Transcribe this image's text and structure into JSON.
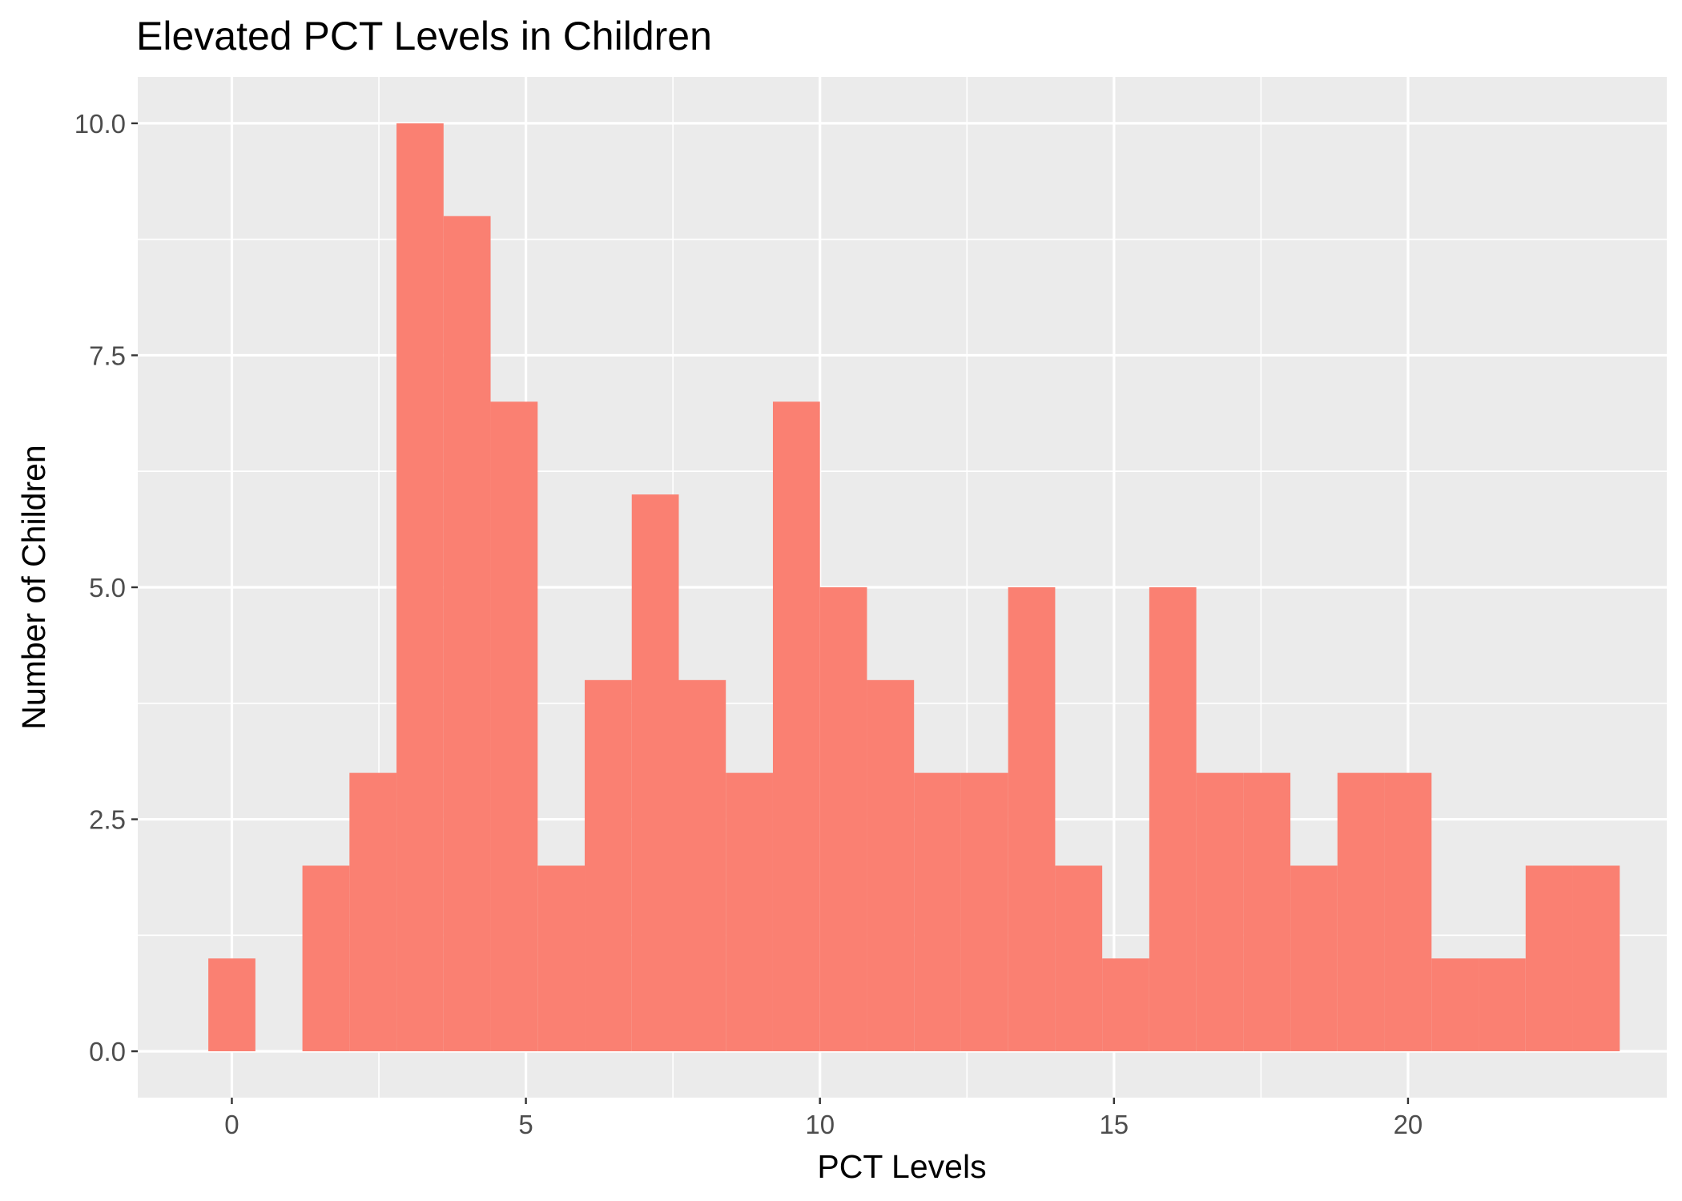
{
  "chart_data": {
    "type": "bar",
    "title": "Elevated PCT Levels in Children",
    "xlabel": "PCT Levels",
    "ylabel": "Number of Children",
    "bin_width": 0.8,
    "bins": [
      {
        "x": 0.0,
        "count": 1
      },
      {
        "x": 0.8,
        "count": 0
      },
      {
        "x": 1.6,
        "count": 2
      },
      {
        "x": 2.4,
        "count": 3
      },
      {
        "x": 3.2,
        "count": 10
      },
      {
        "x": 4.0,
        "count": 9
      },
      {
        "x": 4.8,
        "count": 7
      },
      {
        "x": 5.6,
        "count": 2
      },
      {
        "x": 6.4,
        "count": 4
      },
      {
        "x": 7.2,
        "count": 6
      },
      {
        "x": 8.0,
        "count": 4
      },
      {
        "x": 8.8,
        "count": 3
      },
      {
        "x": 9.6,
        "count": 7
      },
      {
        "x": 10.4,
        "count": 5
      },
      {
        "x": 11.2,
        "count": 4
      },
      {
        "x": 12.0,
        "count": 3
      },
      {
        "x": 12.8,
        "count": 3
      },
      {
        "x": 13.6,
        "count": 5
      },
      {
        "x": 14.4,
        "count": 2
      },
      {
        "x": 15.2,
        "count": 1
      },
      {
        "x": 16.0,
        "count": 5
      },
      {
        "x": 16.8,
        "count": 3
      },
      {
        "x": 17.6,
        "count": 3
      },
      {
        "x": 18.4,
        "count": 2
      },
      {
        "x": 19.2,
        "count": 3
      },
      {
        "x": 20.0,
        "count": 3
      },
      {
        "x": 20.8,
        "count": 1
      },
      {
        "x": 21.6,
        "count": 1
      },
      {
        "x": 22.4,
        "count": 2
      },
      {
        "x": 23.2,
        "count": 2
      }
    ],
    "xlim": [
      -1.6,
      24.4
    ],
    "ylim": [
      -0.5,
      10.5
    ],
    "x_ticks": [
      {
        "value": 0,
        "label": "0"
      },
      {
        "value": 5,
        "label": "5"
      },
      {
        "value": 10,
        "label": "10"
      },
      {
        "value": 15,
        "label": "15"
      },
      {
        "value": 20,
        "label": "20"
      }
    ],
    "y_ticks": [
      {
        "value": 0,
        "label": "0.0"
      },
      {
        "value": 2.5,
        "label": "2.5"
      },
      {
        "value": 5,
        "label": "5.0"
      },
      {
        "value": 7.5,
        "label": "7.5"
      },
      {
        "value": 10,
        "label": "10.0"
      }
    ],
    "grid": true,
    "legend": false,
    "colors": {
      "bar_fill": "#fa8072",
      "panel_background": "#ebebeb",
      "grid_line": "#ffffff",
      "tick_text": "#4d4d4d",
      "tick_mark": "#333333"
    }
  }
}
